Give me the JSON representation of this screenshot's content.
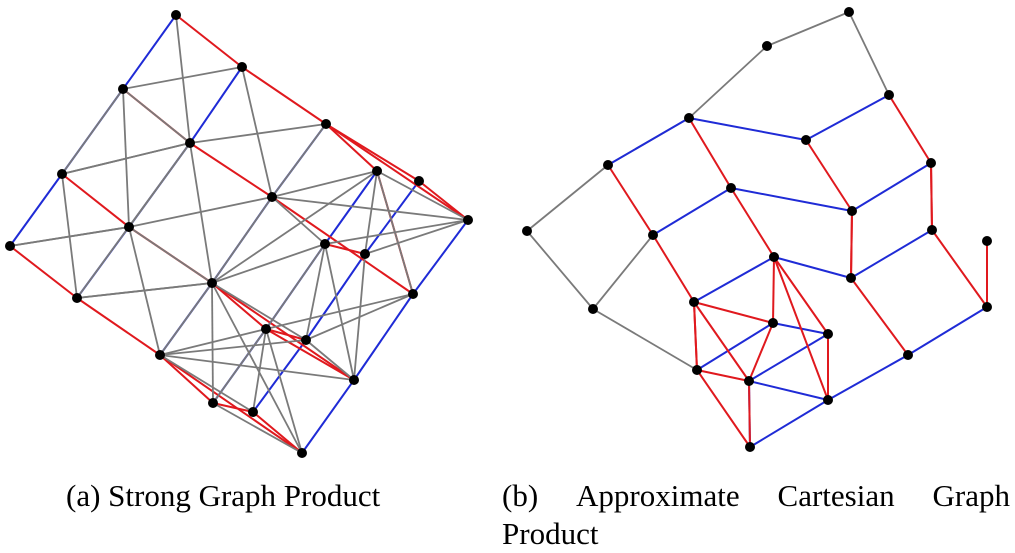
{
  "captions": {
    "a": {
      "label": "(a)",
      "text": "Strong Graph Product"
    },
    "b": {
      "label": "(b)",
      "words_line1": [
        "Approximate",
        "Cartesian",
        "Graph"
      ],
      "line2": "Product"
    }
  },
  "colors": {
    "red": "#e0191e",
    "blue": "#1f2bd6",
    "gray": "#7a7a7a",
    "node": "#000000"
  }
}
